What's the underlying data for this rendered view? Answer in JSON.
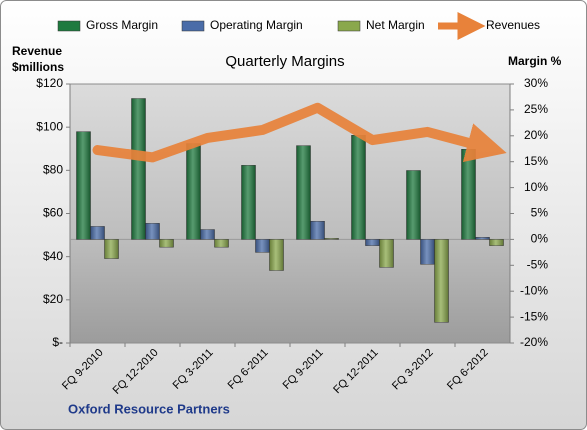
{
  "chart_data": {
    "type": "bar",
    "title": "Quarterly Margins",
    "ylabel": [
      "Revenue",
      "$millions"
    ],
    "y2label": "Margin %",
    "source": "Oxford Resource Partners",
    "categories": [
      "FQ 9-2010",
      "FQ 12-2010",
      "FQ 3-2011",
      "FQ 6-2011",
      "FQ 9-2011",
      "FQ 12-2011",
      "FQ 3-2012",
      "FQ 6-2012"
    ],
    "series": [
      {
        "name": "Gross Margin",
        "color": "#1f7a3f",
        "axis": "y2",
        "values": [
          20.8,
          27.2,
          18.5,
          14.3,
          18.1,
          20.1,
          13.3,
          17.4
        ]
      },
      {
        "name": "Operating Margin",
        "color": "#4a6ca8",
        "axis": "y2",
        "values": [
          2.5,
          3.1,
          1.9,
          -2.5,
          3.5,
          -1.2,
          -4.8,
          0.4
        ]
      },
      {
        "name": "Net Margin",
        "color": "#8aa84c",
        "axis": "y2",
        "values": [
          -3.7,
          -1.5,
          -1.5,
          -6.0,
          0.2,
          -5.4,
          -16.0,
          -1.2
        ]
      },
      {
        "name": "Revenues",
        "color": "#e8823a",
        "type": "line",
        "values": [
          89.4,
          86.0,
          95.0,
          98.7,
          109.0,
          94.0,
          97.8,
          91.0
        ]
      }
    ],
    "ylim": [
      0,
      120
    ],
    "yticks": [
      {
        "value": 0,
        "label": "$-"
      },
      {
        "value": 20,
        "label": "$20"
      },
      {
        "value": 40,
        "label": "$40"
      },
      {
        "value": 60,
        "label": "$60"
      },
      {
        "value": 80,
        "label": "$80"
      },
      {
        "value": 100,
        "label": "$100"
      },
      {
        "value": 120,
        "label": "$120"
      }
    ],
    "y2lim": [
      -20,
      30
    ],
    "y2ticks": [
      {
        "value": -20,
        "label": "-20%"
      },
      {
        "value": -15,
        "label": "-15%"
      },
      {
        "value": -10,
        "label": "-10%"
      },
      {
        "value": -5,
        "label": "-5%"
      },
      {
        "value": 0,
        "label": "0%"
      },
      {
        "value": 5,
        "label": "5%"
      },
      {
        "value": 10,
        "label": "10%"
      },
      {
        "value": 15,
        "label": "15%"
      },
      {
        "value": 20,
        "label": "20%"
      },
      {
        "value": 25,
        "label": "25%"
      },
      {
        "value": 30,
        "label": "30%"
      }
    ],
    "grid": false
  }
}
